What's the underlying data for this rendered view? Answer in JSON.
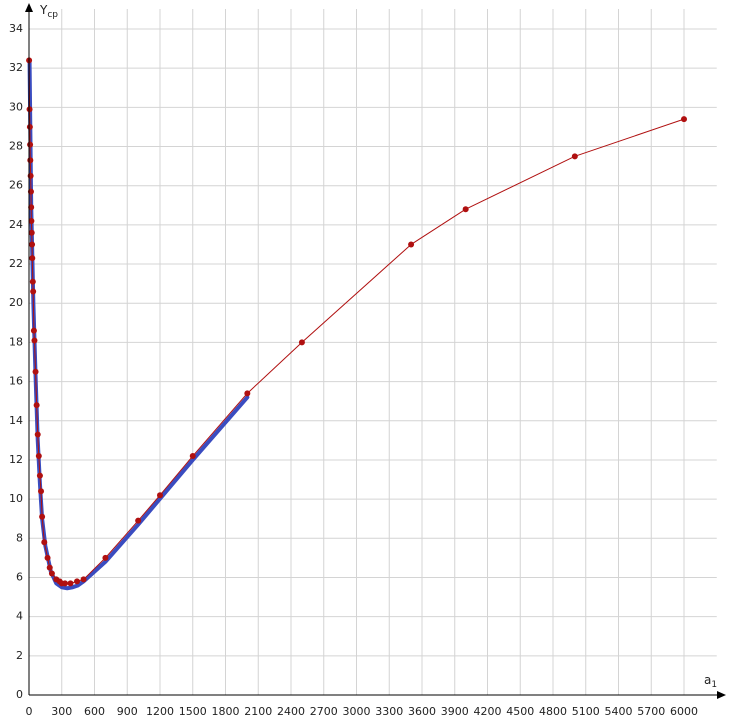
{
  "chart_data": {
    "type": "line",
    "x_label": "a",
    "x_label_sub": "1",
    "y_label": "Y",
    "y_label_sub": "ср",
    "xlim": [
      0,
      6300
    ],
    "ylim": [
      0,
      34
    ],
    "xticks": [
      0,
      300,
      600,
      900,
      1200,
      1500,
      1800,
      2100,
      2400,
      2700,
      3000,
      3300,
      3600,
      3900,
      4200,
      4500,
      4800,
      5100,
      5400,
      5700,
      6000
    ],
    "yticks": [
      0,
      2,
      4,
      6,
      8,
      10,
      12,
      14,
      16,
      18,
      20,
      22,
      24,
      26,
      28,
      30,
      32,
      34
    ],
    "grid": true,
    "series": [
      {
        "color": "#3a4cc0",
        "markers": false,
        "x": [
          5,
          20,
          40,
          60,
          80,
          100,
          120,
          150,
          200,
          250,
          300,
          350,
          400,
          450,
          500,
          700,
          1000,
          1500,
          2000
        ],
        "values": [
          32.4,
          25,
          20,
          16.3,
          13,
          10.8,
          9,
          7.6,
          6.3,
          5.7,
          5.5,
          5.45,
          5.5,
          5.6,
          5.8,
          6.8,
          8.7,
          12,
          15.2
        ]
      },
      {
        "color": "#b01010",
        "markers": true,
        "x": [
          1,
          5,
          8,
          10,
          12,
          15,
          18,
          20,
          22,
          25,
          28,
          30,
          35,
          38,
          45,
          50,
          60,
          70,
          80,
          90,
          100,
          110,
          120,
          140,
          170,
          190,
          210,
          250,
          280,
          300,
          330,
          380,
          440,
          500,
          700,
          1000,
          1200,
          1500,
          2000,
          2500,
          3500,
          4000,
          5000,
          6000
        ],
        "values": [
          32.4,
          29.9,
          29,
          28.1,
          27.3,
          26.5,
          25.7,
          24.9,
          24.2,
          23.6,
          23,
          22.3,
          21.1,
          20.6,
          18.6,
          18.1,
          16.5,
          14.8,
          13.3,
          12.2,
          11.2,
          10.4,
          9.1,
          7.8,
          7,
          6.5,
          6.2,
          5.9,
          5.8,
          5.7,
          5.7,
          5.7,
          5.8,
          5.9,
          7,
          8.9,
          10.2,
          12.2,
          15.4,
          18,
          23,
          24.8,
          27.5,
          29.4
        ]
      }
    ]
  }
}
